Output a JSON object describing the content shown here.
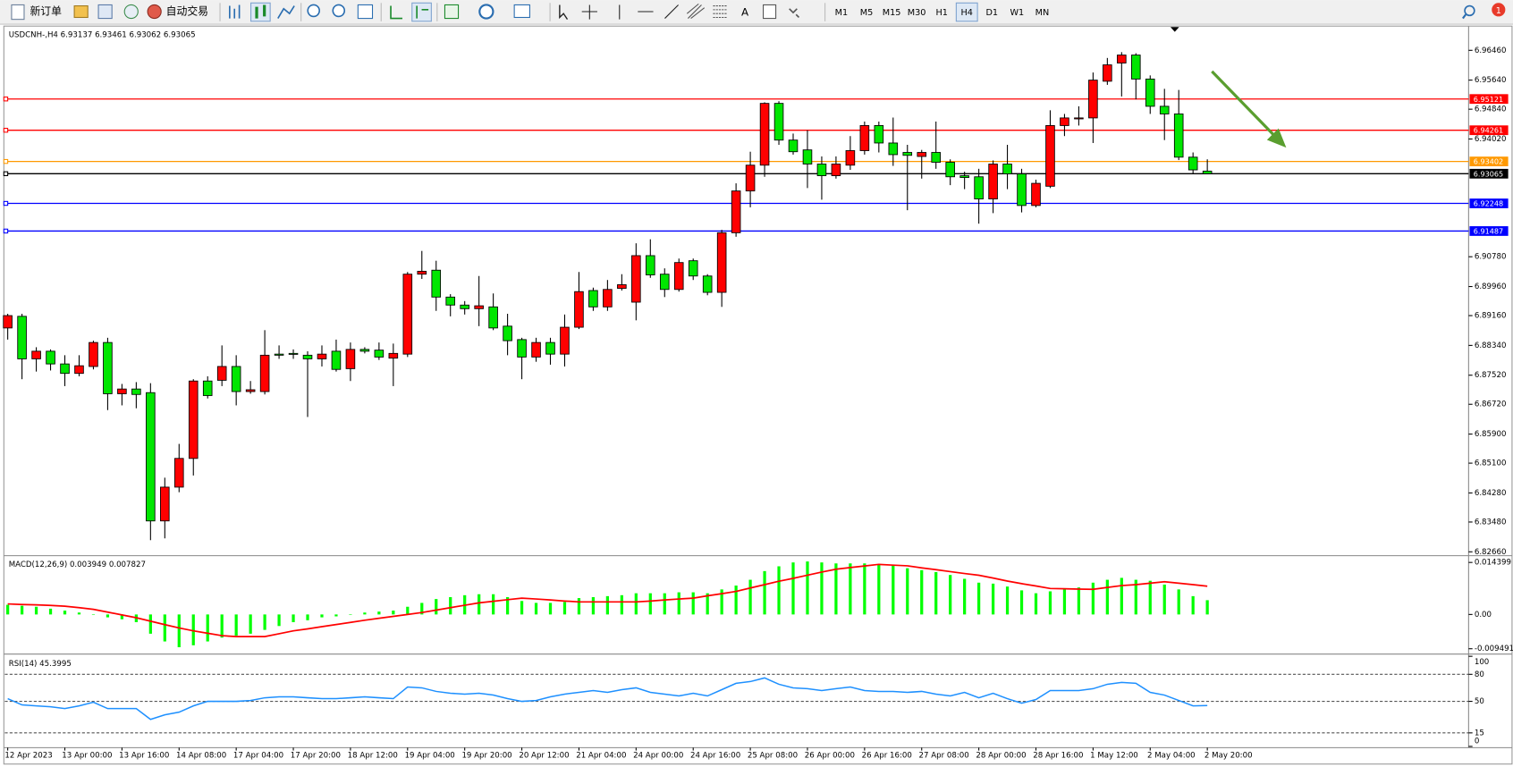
{
  "toolbar": {
    "new_order": "新订单",
    "auto_trading": "自动交易",
    "text_tool": "A",
    "timeframes": [
      "M1",
      "M5",
      "M15",
      "M30",
      "H1",
      "H4",
      "D1",
      "W1",
      "MN"
    ],
    "active_timeframe": "H4",
    "notifications": "1"
  },
  "chart_data": [
    {
      "type": "candlestick",
      "title": "USDCNH-,H4  6.93137 6.93461 6.93062 6.93065",
      "categories": [
        "12 Apr 2023",
        null,
        null,
        null,
        "13 Apr 00:00",
        null,
        null,
        null,
        "13 Apr 16:00",
        null,
        null,
        null,
        "14 Apr 08:00",
        null,
        null,
        null,
        "17 Apr 04:00",
        null,
        null,
        null,
        "17 Apr 20:00",
        null,
        null,
        null,
        "18 Apr 12:00",
        null,
        null,
        null,
        "19 Apr 04:00",
        null,
        null,
        null,
        "19 Apr 20:00",
        null,
        null,
        null,
        "20 Apr 12:00",
        null,
        null,
        null,
        "21 Apr 04:00",
        null,
        null,
        null,
        "24 Apr 00:00",
        null,
        null,
        null,
        "24 Apr 16:00",
        null,
        null,
        null,
        "25 Apr 08:00",
        null,
        null,
        null,
        "26 Apr 00:00",
        null,
        null,
        null,
        "26 Apr 16:00",
        null,
        null,
        null,
        "27 Apr 08:00",
        null,
        null,
        null,
        "28 Apr 00:00",
        null,
        null,
        null,
        "28 Apr 16:00",
        null,
        null,
        null,
        "1 May 12:00",
        null,
        null,
        null,
        "2 May 04:00",
        null,
        null,
        null,
        "2 May 20:00"
      ],
      "open": [
        6.8882,
        6.8914,
        6.8797,
        6.8818,
        6.8783,
        6.8757,
        6.8776,
        6.8842,
        6.8701,
        6.8714,
        6.8704,
        6.8351,
        6.8444,
        6.8523,
        6.8736,
        6.8738,
        6.8776,
        6.8707,
        6.8707,
        6.881,
        6.8812,
        6.8807,
        6.8797,
        6.8818,
        6.877,
        6.8823,
        6.8821,
        6.8799,
        6.881,
        6.903,
        6.9041,
        6.8967,
        6.8945,
        6.8935,
        6.894,
        6.8887,
        6.885,
        6.8802,
        6.8842,
        6.881,
        6.8884,
        6.8985,
        6.894,
        6.8991,
        6.8953,
        6.9081,
        6.903,
        6.8988,
        6.9067,
        6.9025,
        6.898,
        6.9144,
        6.9259,
        6.933,
        6.95,
        6.9399,
        6.9372,
        6.9333,
        6.9301,
        6.933,
        6.937,
        6.9439,
        6.9391,
        6.9365,
        6.9354,
        6.9365,
        6.9338,
        6.9301,
        6.9298,
        6.9237,
        6.9333,
        6.9306,
        6.9219,
        6.9272,
        6.9439,
        6.9458,
        6.946,
        6.9561,
        6.9611,
        6.9633,
        6.9567,
        6.9492,
        6.9471,
        6.9352,
        6.93137
      ],
      "high": [
        6.8921,
        6.8921,
        6.8829,
        6.8823,
        6.8807,
        6.8807,
        6.8847,
        6.8855,
        6.8728,
        6.8733,
        6.873,
        6.847,
        6.8563,
        6.8741,
        6.8749,
        6.8834,
        6.8807,
        6.8736,
        6.8876,
        6.8834,
        6.8823,
        6.8818,
        6.8834,
        6.885,
        6.8842,
        6.8829,
        6.8842,
        6.8839,
        6.9036,
        6.9094,
        6.9067,
        6.8975,
        6.8956,
        6.9025,
        6.8977,
        6.8921,
        6.8855,
        6.8855,
        6.8855,
        6.8919,
        6.9036,
        6.8993,
        6.9014,
        6.903,
        6.9115,
        6.9126,
        6.9046,
        6.9073,
        6.9073,
        6.903,
        6.9152,
        6.928,
        6.9367,
        6.9503,
        6.9506,
        6.9417,
        6.9426,
        6.9354,
        6.9354,
        6.941,
        6.945,
        6.945,
        6.9461,
        6.9386,
        6.9372,
        6.945,
        6.9346,
        6.9312,
        6.932,
        6.9343,
        6.9386,
        6.932,
        6.929,
        6.9481,
        6.9471,
        6.9492,
        6.9585,
        6.9625,
        6.9641,
        6.9638,
        6.9577,
        6.954,
        6.9537,
        6.9365,
        6.93461
      ],
      "low": [
        6.885,
        6.8741,
        6.8762,
        6.8765,
        6.8722,
        6.8749,
        6.8768,
        6.8656,
        6.8669,
        6.8661,
        6.8298,
        6.8303,
        6.843,
        6.8476,
        6.8688,
        6.8722,
        6.8669,
        6.8701,
        6.8699,
        6.8797,
        6.8797,
        6.8637,
        6.8776,
        6.8762,
        6.8736,
        6.8812,
        6.8794,
        6.8722,
        6.8802,
        6.9017,
        6.8929,
        6.8914,
        6.8919,
        6.8887,
        6.8876,
        6.8807,
        6.8741,
        6.8789,
        6.8781,
        6.8776,
        6.8879,
        6.8929,
        6.8929,
        6.8985,
        6.8903,
        6.902,
        6.8967,
        6.8982,
        6.9014,
        6.8972,
        6.894,
        6.9133,
        6.9214,
        6.9298,
        6.9386,
        6.9359,
        6.9267,
        6.9235,
        6.9293,
        6.9317,
        6.9359,
        6.9365,
        6.9328,
        6.9206,
        6.9293,
        6.932,
        6.9275,
        6.9264,
        6.9169,
        6.9198,
        6.9264,
        6.92,
        6.9214,
        6.9267,
        6.941,
        6.9439,
        6.9391,
        6.9551,
        6.9519,
        6.9511,
        6.9471,
        6.9399,
        6.9344,
        6.9306,
        6.93062
      ],
      "close": [
        6.8916,
        6.8797,
        6.8818,
        6.8783,
        6.8757,
        6.8778,
        6.8842,
        6.8701,
        6.8714,
        6.8699,
        6.8351,
        6.8444,
        6.8523,
        6.8736,
        6.8696,
        6.8776,
        6.8707,
        6.8712,
        6.8807,
        6.8807,
        6.881,
        6.8797,
        6.881,
        6.8768,
        6.8823,
        6.8818,
        6.8802,
        6.8812,
        6.903,
        6.9038,
        6.8967,
        6.8945,
        6.8935,
        6.8943,
        6.8882,
        6.8847,
        6.8802,
        6.8842,
        6.881,
        6.8884,
        6.8982,
        6.894,
        6.8988,
        6.9001,
        6.9081,
        6.9028,
        6.8988,
        6.9062,
        6.9025,
        6.898,
        6.9144,
        6.9259,
        6.933,
        6.95,
        6.9399,
        6.9367,
        6.9333,
        6.9301,
        6.9333,
        6.937,
        6.9439,
        6.9391,
        6.9359,
        6.9357,
        6.9365,
        6.9338,
        6.9298,
        6.9296,
        6.9237,
        6.9333,
        6.9306,
        6.9219,
        6.928,
        6.9439,
        6.946,
        6.946,
        6.9564,
        6.9606,
        6.9633,
        6.9567,
        6.9492,
        6.9471,
        6.9352,
        6.9317,
        6.93065
      ],
      "up_color": "#ff0000",
      "down_color": "#00e600",
      "ylim": [
        6.8258,
        6.971
      ],
      "yticks": [
        {
          "value": 6.9646,
          "label": "6.96460"
        },
        {
          "value": 6.9564,
          "label": "6.95640"
        },
        {
          "value": 6.9484,
          "label": "6.94840"
        },
        {
          "value": 6.9402,
          "label": "6.94020"
        },
        {
          "value": 6.9078,
          "label": "6.90780"
        },
        {
          "value": 6.8996,
          "label": "6.89960"
        },
        {
          "value": 6.8916,
          "label": "6.89160"
        },
        {
          "value": 6.8834,
          "label": "6.88340"
        },
        {
          "value": 6.8752,
          "label": "6.87520"
        },
        {
          "value": 6.8672,
          "label": "6.86720"
        },
        {
          "value": 6.859,
          "label": "6.85900"
        },
        {
          "value": 6.851,
          "label": "6.85100"
        },
        {
          "value": 6.8428,
          "label": "6.84280"
        },
        {
          "value": 6.8348,
          "label": "6.83480"
        },
        {
          "value": 6.8266,
          "label": "6.82660"
        }
      ],
      "levels": [
        {
          "value": 6.95121,
          "color": "#ff0000"
        },
        {
          "value": 6.94261,
          "color": "#ff0000"
        },
        {
          "value": 6.93402,
          "color": "#ff9900"
        },
        {
          "value": 6.93065,
          "color": "#000000"
        },
        {
          "value": 6.92248,
          "color": "#0000ff"
        },
        {
          "value": 6.91487,
          "color": "#0000ff"
        }
      ]
    },
    {
      "type": "macd",
      "title": "MACD(12,26,9) 0.003949 0.007827",
      "histogram": {
        "color": "#00ff00",
        "values": [
          0.00267,
          0.0024,
          0.00213,
          0.0016,
          0.00107,
          0.00053,
          0,
          -0.0008,
          -0.00133,
          -0.00213,
          -0.00533,
          -0.00747,
          -0.00907,
          -0.00853,
          -0.00747,
          -0.0064,
          -0.00587,
          -0.00533,
          -0.00427,
          -0.0032,
          -0.00213,
          -0.0016,
          -0.0008,
          -0.00053,
          0,
          0.00053,
          0.0008,
          0.00107,
          0.00213,
          0.0032,
          0.00427,
          0.0048,
          0.00533,
          0.0056,
          0.0056,
          0.0048,
          0.00373,
          0.0032,
          0.0032,
          0.00347,
          0.00453,
          0.0048,
          0.00507,
          0.00533,
          0.00587,
          0.00587,
          0.00587,
          0.00613,
          0.00613,
          0.00587,
          0.00693,
          0.008,
          0.0096,
          0.012,
          0.01333,
          0.0144,
          0.01467,
          0.0144,
          0.01413,
          0.01413,
          0.01413,
          0.01387,
          0.0136,
          0.0128,
          0.01227,
          0.01173,
          0.01093,
          0.00987,
          0.0088,
          0.00853,
          0.00773,
          0.00667,
          0.00587,
          0.0064,
          0.00693,
          0.00747,
          0.0088,
          0.0096,
          0.01013,
          0.0096,
          0.00933,
          0.00827,
          0.00693,
          0.00507,
          0.003949
        ]
      },
      "signal": {
        "color": "#ff0000",
        "values": [
          0.00293,
          0.00277,
          0.00264,
          0.00248,
          0.00227,
          0.00187,
          0.00141,
          0.00064,
          -0.00013,
          -0.00091,
          -0.00187,
          -0.00283,
          -0.00373,
          -0.00453,
          -0.0052,
          -0.00587,
          -0.00613,
          -0.00613,
          -0.00613,
          -0.00533,
          -0.00453,
          -0.004,
          -0.00339,
          -0.0028,
          -0.00221,
          -0.0016,
          -0.00107,
          -0.00053,
          0,
          0.00053,
          0.0012,
          0.00187,
          0.00253,
          0.0032,
          0.00365,
          0.00408,
          0.00453,
          0.00427,
          0.004,
          0.00373,
          0.00347,
          0.00347,
          0.00347,
          0.00347,
          0.00347,
          0.00373,
          0.004,
          0.00427,
          0.00453,
          0.00515,
          0.00576,
          0.0064,
          0.00733,
          0.00827,
          0.0092,
          0.01,
          0.01088,
          0.01173,
          0.01253,
          0.01299,
          0.01341,
          0.01387,
          0.01365,
          0.01347,
          0.01291,
          0.0124,
          0.01187,
          0.01133,
          0.01085,
          0.01008,
          0.00925,
          0.00853,
          0.00787,
          0.0072,
          0.00712,
          0.00704,
          0.00696,
          0.00747,
          0.008,
          0.00827,
          0.00867,
          0.00907,
          0.00867,
          0.00827,
          0.007827
        ]
      },
      "ylim": [
        -0.0107,
        0.016
      ],
      "yticks": [
        0.014399,
        {
          "value": 0,
          "label": "0.00"
        },
        -0.009491
      ]
    },
    {
      "type": "rsi",
      "title": "RSI(14) 45.3995",
      "color": "#1e90ff",
      "values": [
        53,
        46,
        45,
        44,
        42,
        45,
        49,
        42,
        42,
        42,
        30,
        35,
        38,
        45,
        50,
        50,
        50,
        51,
        54,
        55,
        55,
        54,
        53,
        53,
        54,
        55,
        54,
        53,
        66,
        65,
        61,
        59,
        58,
        59,
        57,
        53,
        50,
        51,
        55,
        58,
        60,
        62,
        60,
        63,
        65,
        60,
        58,
        56,
        59,
        56,
        63,
        70,
        72,
        76,
        69,
        65,
        64,
        62,
        64,
        66,
        62,
        61,
        61,
        60,
        61,
        58,
        56,
        60,
        54,
        59,
        53,
        48,
        52,
        62,
        62,
        62,
        64,
        69,
        71,
        70,
        60,
        57,
        51,
        45,
        45.3995
      ],
      "ylim": [
        0,
        100
      ],
      "yticks": [
        100,
        80,
        50,
        15,
        0
      ],
      "levels": [
        80,
        50,
        15
      ]
    }
  ]
}
